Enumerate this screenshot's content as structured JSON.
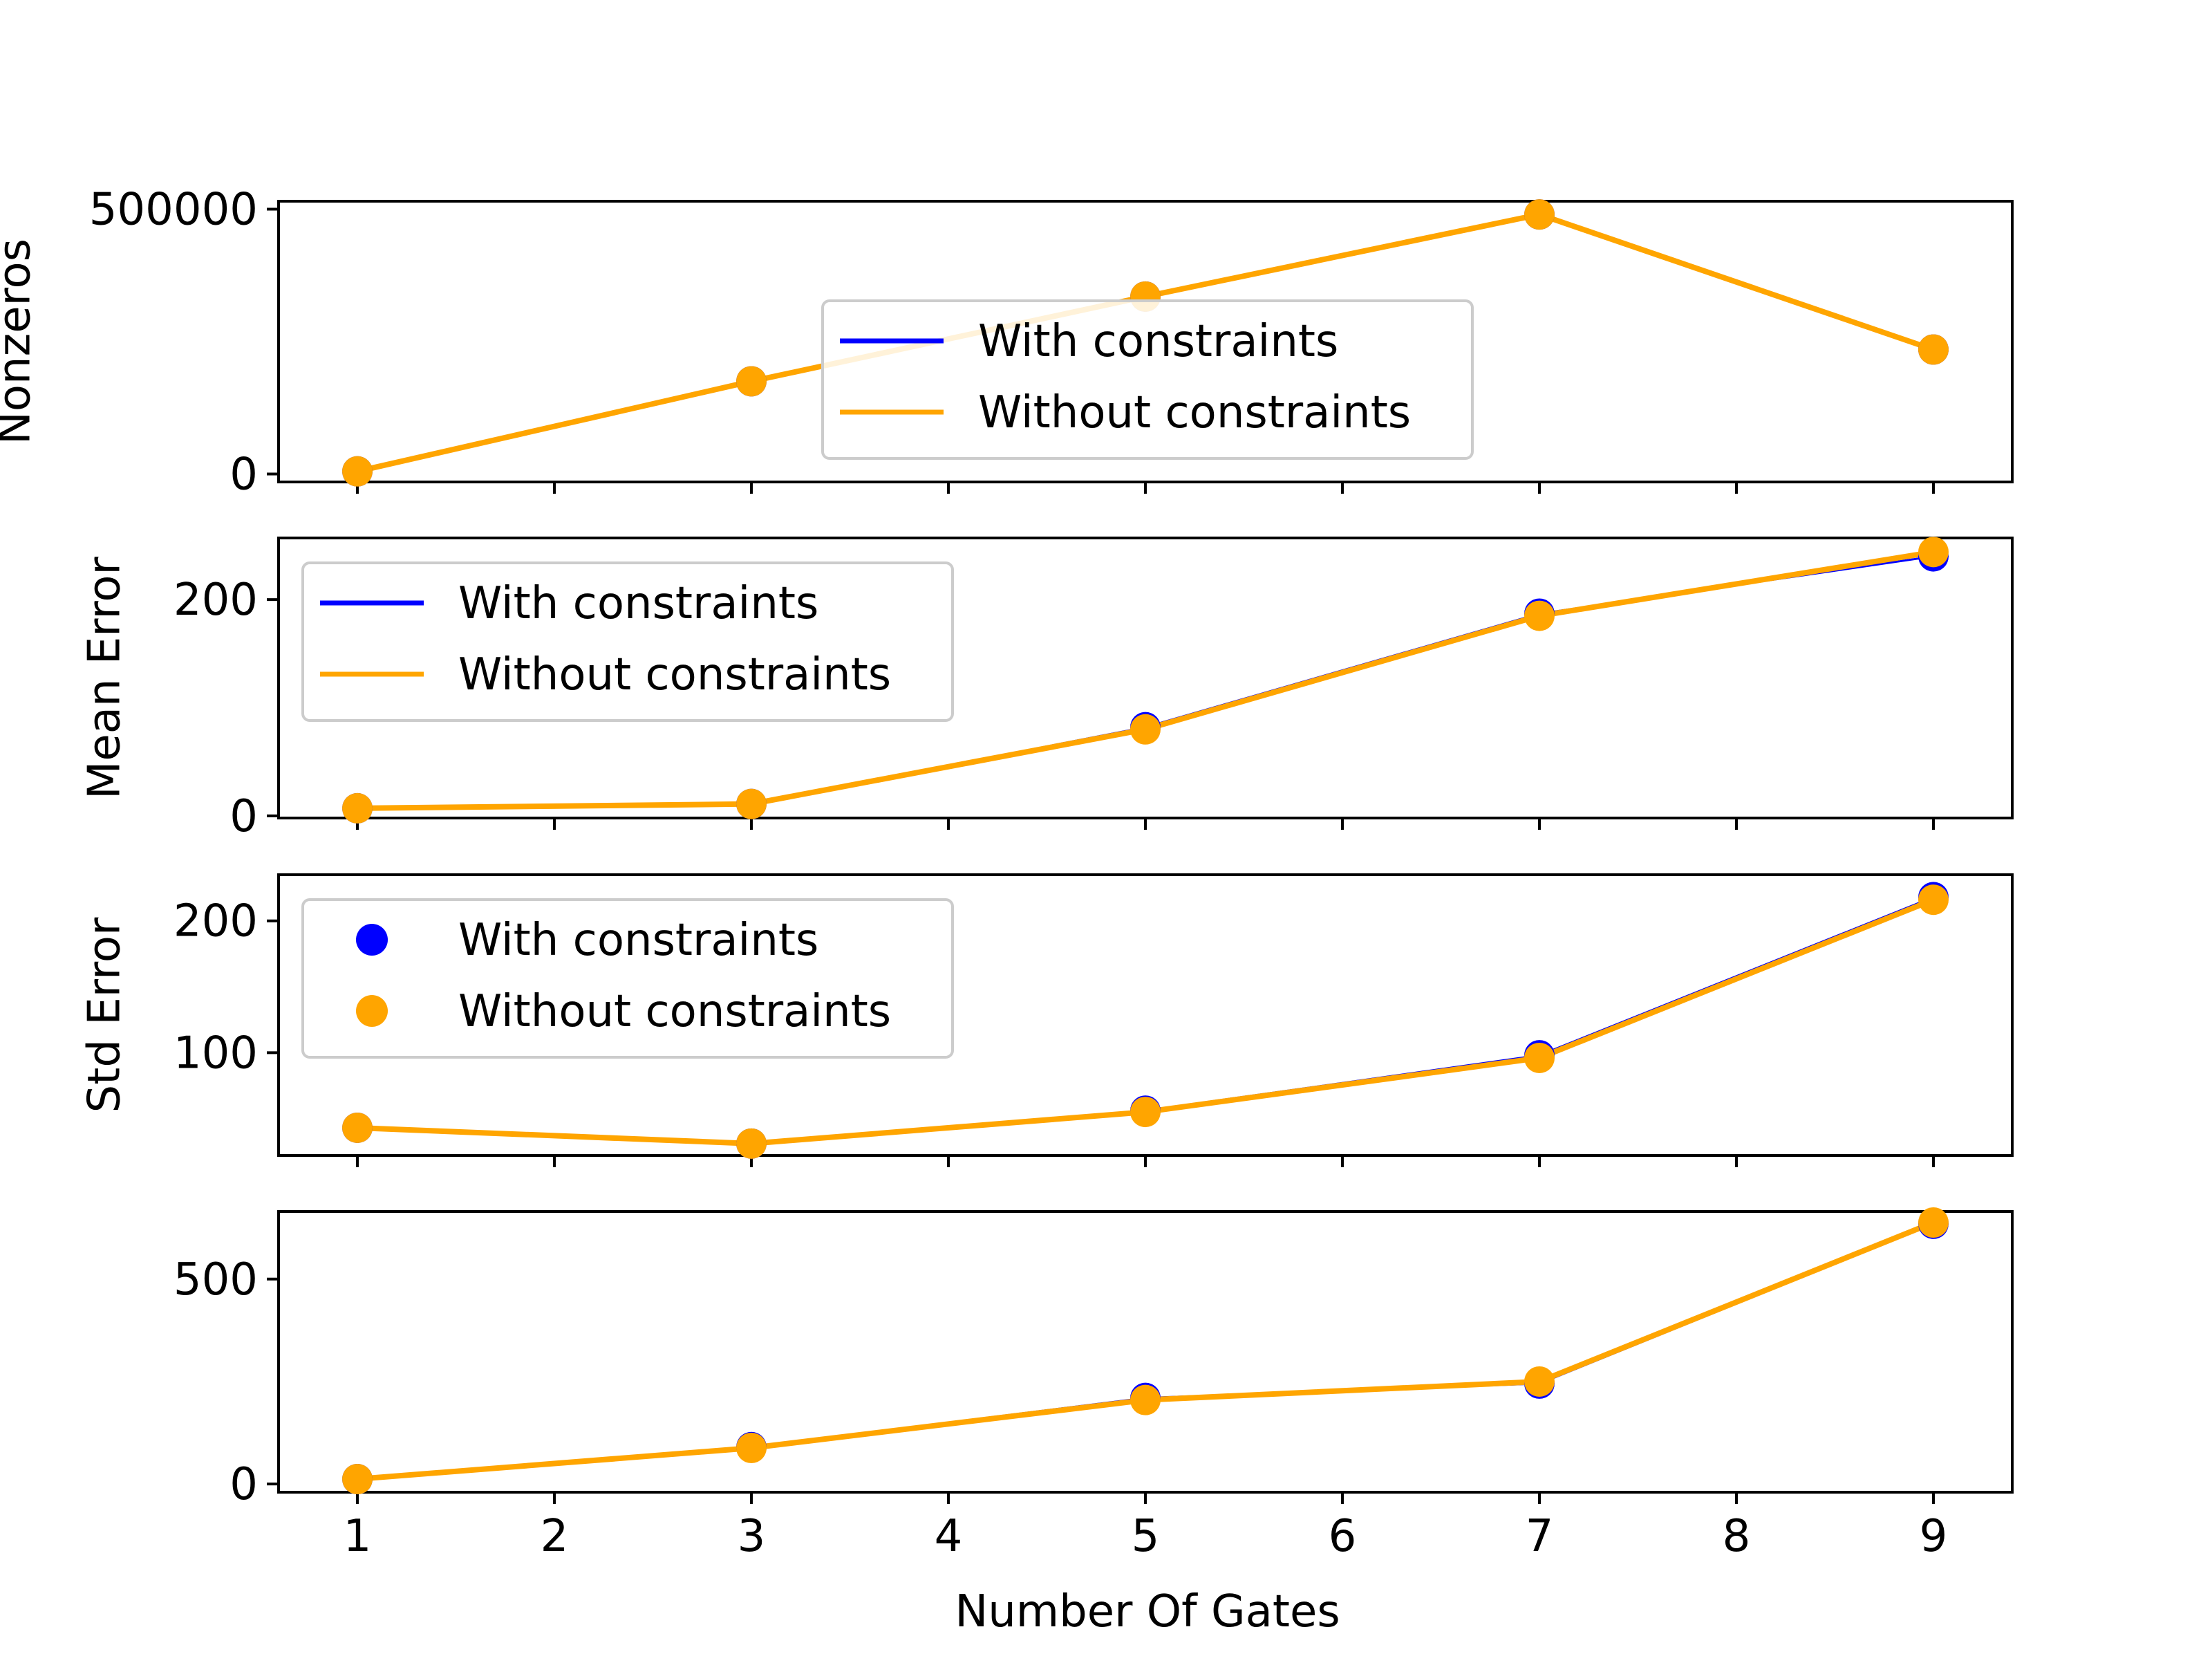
{
  "chart_data": {
    "type": "line",
    "x": [
      1,
      3,
      5,
      7,
      9
    ],
    "xlabel": "Number Of Gates",
    "xticks": [
      1,
      2,
      3,
      4,
      5,
      6,
      7,
      8,
      9
    ],
    "colors": {
      "with": "#0000ff",
      "without": "#ffa500"
    },
    "panels": [
      {
        "ylabel": "Nonzeros",
        "ylim": [
          -15000,
          515000
        ],
        "yticks": [
          0,
          500000
        ],
        "ytick_labels": [
          "0",
          "500000"
        ],
        "legend_position": "center-right",
        "legend_marker": "line",
        "series": [
          {
            "name": "With constraints",
            "values": [
              5000,
              175000,
              335000,
              490000,
              235000
            ]
          },
          {
            "name": "Without constraints",
            "values": [
              5000,
              175000,
              335000,
              490000,
              235000
            ]
          }
        ]
      },
      {
        "ylabel": "Mean Error",
        "ylim": [
          -2,
          257
        ],
        "yticks": [
          0,
          200
        ],
        "ytick_labels": [
          "0",
          "200"
        ],
        "legend_position": "upper-left",
        "legend_marker": "line",
        "series": [
          {
            "name": "With constraints",
            "values": [
              7,
              11,
              82,
              187,
              240
            ]
          },
          {
            "name": "Without constraints",
            "values": [
              7,
              11,
              80,
              185,
              244
            ]
          }
        ]
      },
      {
        "ylabel": "Std Error",
        "ylim": [
          22,
          235
        ],
        "yticks": [
          100,
          200
        ],
        "ytick_labels": [
          "100",
          "200"
        ],
        "legend_position": "upper-left",
        "legend_marker": "scatter",
        "series": [
          {
            "name": "With constraints",
            "values": [
              43,
              31,
              56,
              98,
              218
            ]
          },
          {
            "name": "Without constraints",
            "values": [
              43,
              31,
              55,
              96,
              216
            ]
          }
        ]
      },
      {
        "ylabel": "",
        "ylim": [
          -20,
          665
        ],
        "yticks": [
          0,
          500
        ],
        "ytick_labels": [
          "0",
          "500"
        ],
        "legend_position": "",
        "series": [
          {
            "name": "With constraints",
            "values": [
              12,
              90,
              210,
              245,
              635
            ]
          },
          {
            "name": "Without constraints",
            "values": [
              12,
              88,
              205,
              250,
              638
            ]
          }
        ]
      }
    ]
  }
}
